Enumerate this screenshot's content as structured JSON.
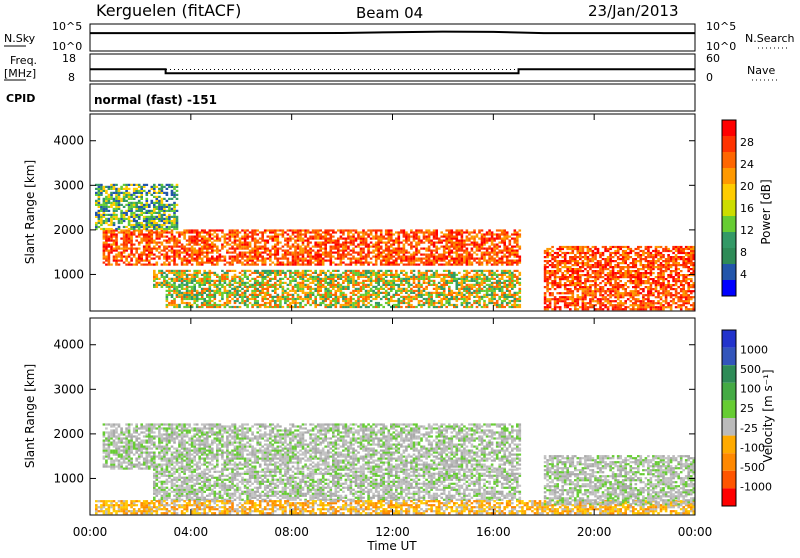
{
  "header": {
    "station": "Kerguelen (fitACF)",
    "beam": "Beam 04",
    "date": "23/Jan/2013"
  },
  "left_labels": {
    "nsky": "N.Sky",
    "freq_line1": "Freq.",
    "freq_line2": "[MHz]",
    "cpid": "CPID"
  },
  "right_labels": {
    "nsearch": "N.Search",
    "nave": "Nave"
  },
  "cpid_text": "normal (fast) -151",
  "xaxis": {
    "label": "Time UT",
    "ticks": [
      "00:00",
      "04:00",
      "08:00",
      "12:00",
      "16:00",
      "20:00",
      "00:00"
    ]
  },
  "chart_data": [
    {
      "type": "line",
      "name": "noise",
      "left_axis": {
        "ticks": [
          "10^5",
          "10^0"
        ]
      },
      "right_axis": {
        "ticks": [
          "10^5",
          "10^0"
        ]
      },
      "series": [
        {
          "values_hours": [
            0,
            2,
            4,
            6,
            8,
            10,
            12,
            14,
            16,
            18,
            20,
            22,
            24
          ],
          "log10_values": [
            3.6,
            3.6,
            3.6,
            3.6,
            3.6,
            3.65,
            3.8,
            3.95,
            3.9,
            3.6,
            3.6,
            3.6,
            3.6
          ]
        }
      ]
    },
    {
      "type": "line",
      "name": "frequency",
      "left_axis": {
        "ticks": [
          "18",
          "8"
        ],
        "ylim": [
          8,
          18
        ]
      },
      "right_axis": {
        "ticks": [
          "60",
          "0"
        ],
        "ylim": [
          0,
          60
        ]
      },
      "series": [
        {
          "style": "solid",
          "x": [
            0,
            3,
            3,
            17,
            17,
            24
          ],
          "y": [
            12.3,
            12.3,
            10.7,
            10.7,
            12.3,
            12.3
          ]
        },
        {
          "style": "dotted",
          "x": [
            0,
            24
          ],
          "y": [
            12.2,
            12.2
          ]
        }
      ]
    },
    {
      "type": "heatmap",
      "name": "power",
      "ylabel": "Slant Range [km]",
      "yticks": [
        "4000",
        "3000",
        "2000",
        "1000"
      ],
      "ylim": [
        180,
        4600
      ],
      "xlim_hours": [
        0,
        24
      ],
      "colorbar": {
        "label": "Power [dB]",
        "ticks": [
          "28",
          "24",
          "20",
          "16",
          "12",
          "8",
          "4"
        ]
      },
      "bands": [
        {
          "x": [
            0.5,
            17.0
          ],
          "range": [
            1200,
            2000
          ],
          "level": "high"
        },
        {
          "x": [
            2.5,
            17.0
          ],
          "range": [
            700,
            1100
          ],
          "level": "mid"
        },
        {
          "x": [
            3.0,
            17.0
          ],
          "range": [
            250,
            700
          ],
          "level": "mid"
        },
        {
          "x": [
            0.2,
            3.5
          ],
          "range": [
            2000,
            3000
          ],
          "level": "low"
        },
        {
          "x": [
            18.0,
            24.0
          ],
          "range": [
            200,
            1600
          ],
          "level": "high"
        }
      ]
    },
    {
      "type": "heatmap",
      "name": "velocity",
      "ylabel": "Slant Range [km]",
      "yticks": [
        "4000",
        "3000",
        "2000",
        "1000"
      ],
      "ylim": [
        180,
        4600
      ],
      "xlim_hours": [
        0,
        24
      ],
      "colorbar": {
        "label": "Velocity [m s⁻¹]",
        "ticks": [
          "1000",
          "500",
          "100",
          "25",
          "-25",
          "-100",
          "-500",
          "-1000"
        ]
      },
      "bands": [
        {
          "x": [
            0.5,
            17.0
          ],
          "range": [
            1200,
            2200
          ],
          "level": "zero"
        },
        {
          "x": [
            2.5,
            17.0
          ],
          "range": [
            500,
            1200
          ],
          "level": "zero"
        },
        {
          "x": [
            0.2,
            24.0
          ],
          "range": [
            200,
            500
          ],
          "level": "negative"
        },
        {
          "x": [
            18.0,
            24.0
          ],
          "range": [
            400,
            1500
          ],
          "level": "zero"
        }
      ]
    }
  ]
}
